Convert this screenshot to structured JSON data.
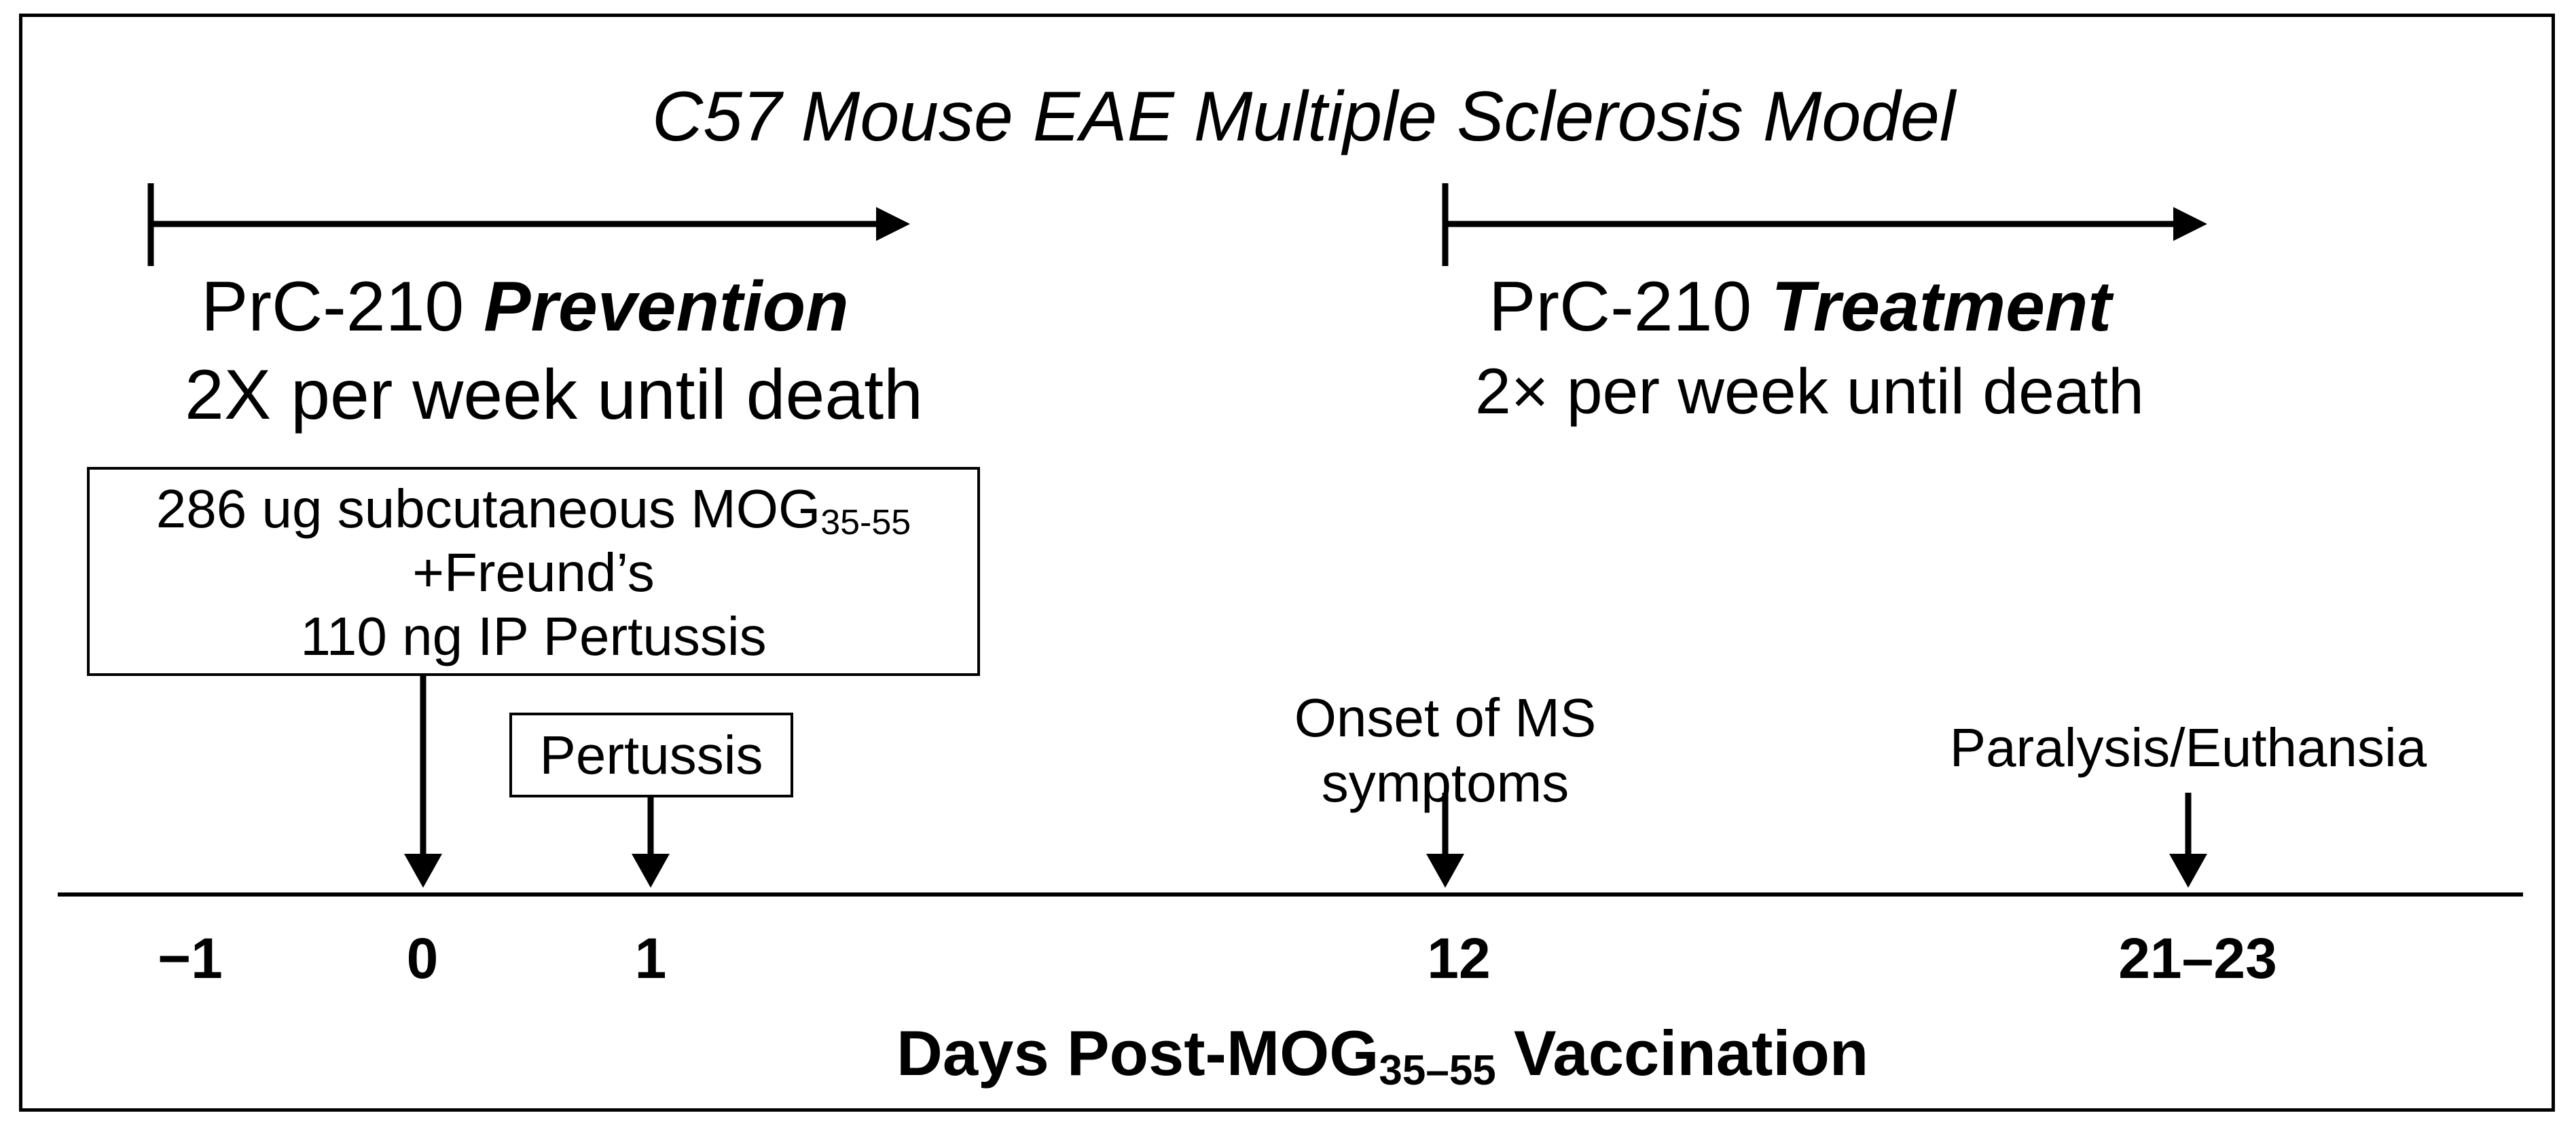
{
  "title": "C57 Mouse EAE Multiple Sclerosis Model",
  "prevention": {
    "drug": "PrC-210 ",
    "label": "Prevention",
    "schedule": "2X per week until death"
  },
  "treatment": {
    "drug": "PrC-210 ",
    "label": "Treatment",
    "schedule": "2× per week until death"
  },
  "vaccination_box": {
    "line1_prefix": "286 ug subcutaneous  MOG",
    "line1_subscript": "35-55",
    "line2": "+Freund’s",
    "line3": "110 ng IP Pertussis"
  },
  "pertussis_box": "Pertussis",
  "events": {
    "onset": "Onset of MS symptoms",
    "paralysis": "Paralysis/Euthansia"
  },
  "ticks": [
    "−1",
    "0",
    "1",
    "12",
    "21–23"
  ],
  "xaxis": {
    "prefix": "Days Post-MOG",
    "subscript": "35–55",
    "suffix": " Vaccination"
  }
}
